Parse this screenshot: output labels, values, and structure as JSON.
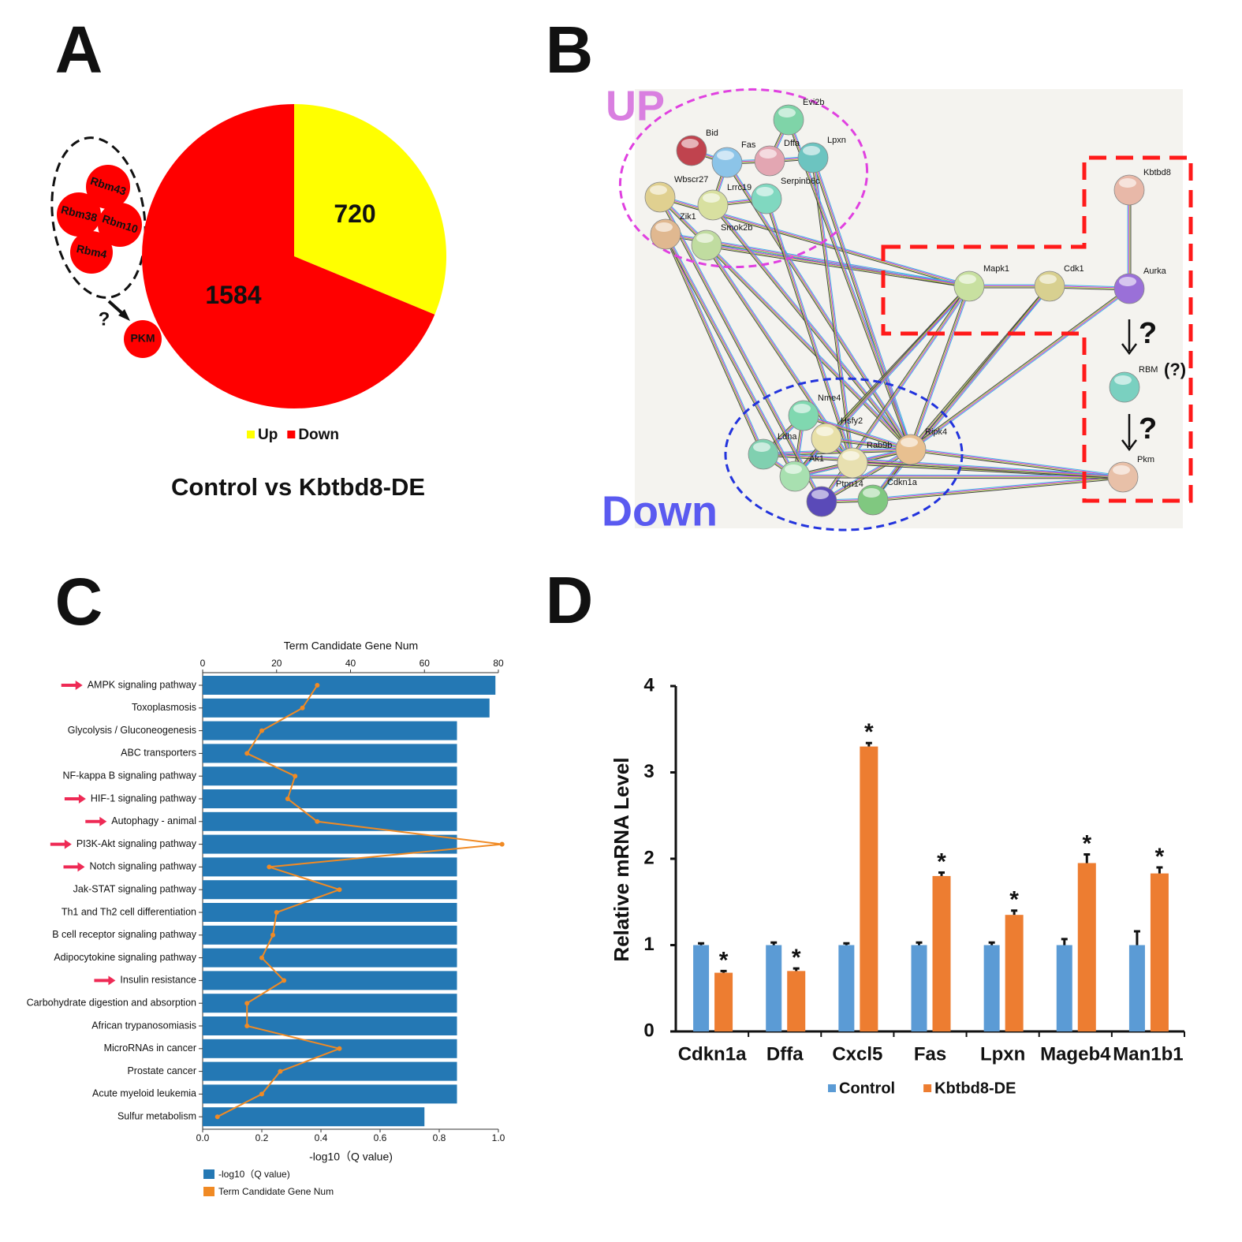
{
  "chart_data": [
    {
      "type": "pie",
      "panel_label": "A",
      "title": "Control vs Kbtbd8-DE",
      "categories": [
        "Up",
        "Down"
      ],
      "values": [
        720,
        1584
      ],
      "colors": [
        "#ffff00",
        "#ff0000"
      ],
      "annotations": [
        "Rbm43",
        "Rbm38",
        "Rbm10",
        "Rbm4",
        "PKM",
        "?"
      ]
    },
    {
      "type": "combo",
      "panel_label": "C",
      "x2label": "Term Candidate Gene Num",
      "xlabel": "-log10（Q value)",
      "categories": [
        "AMPK signaling pathway",
        "Toxoplasmosis",
        "Glycolysis / Gluconeogenesis",
        "ABC transporters",
        "NF-kappa B signaling pathway",
        "HIF-1 signaling pathway",
        "Autophagy - animal",
        "PI3K-Akt signaling pathway",
        "Notch signaling pathway",
        "Jak-STAT signaling pathway",
        "Th1 and Th2 cell differentiation",
        "B cell receptor signaling pathway",
        "Adipocytokine signaling pathway",
        "Insulin resistance",
        "Carbohydrate digestion and absorption",
        "African trypanosomiasis",
        "MicroRNAs in cancer",
        "Prostate cancer",
        "Acute myeloid leukemia",
        "Sulfur metabolism"
      ],
      "series": [
        {
          "name": "-log10（Q value)",
          "color": "#2478b4",
          "values": [
            0.99,
            0.97,
            0.86,
            0.86,
            0.86,
            0.86,
            0.86,
            0.86,
            0.86,
            0.86,
            0.86,
            0.86,
            0.86,
            0.86,
            0.86,
            0.86,
            0.86,
            0.86,
            0.86,
            0.75
          ]
        },
        {
          "name": "Term Candidate Gene Num",
          "color": "#f08a24",
          "axis": "x2",
          "values": [
            31,
            27,
            16,
            12,
            25,
            23,
            31,
            81,
            18,
            37,
            20,
            19,
            16,
            22,
            12,
            12,
            37,
            21,
            16,
            4
          ]
        }
      ],
      "xlim": [
        0,
        1
      ],
      "xticks": [
        {
          "value": 0,
          "label": "0.0"
        },
        {
          "value": 0.2,
          "label": "0.2"
        },
        {
          "value": 0.4,
          "label": "0.4"
        },
        {
          "value": 0.6,
          "label": "0.6"
        },
        {
          "value": 0.8,
          "label": "0.8"
        },
        {
          "value": 1,
          "label": "1.0"
        }
      ],
      "x2lim": [
        0,
        80
      ],
      "x2ticks": [
        0,
        20,
        40,
        60,
        80
      ]
    },
    {
      "type": "bar",
      "panel_label": "D",
      "ylabel": "Relative mRNA  Level",
      "categories": [
        "Cdkn1a",
        "Dffa",
        "Cxcl5",
        "Fas",
        "Lpxn",
        "Mageb4",
        "Man1b1"
      ],
      "series": [
        {
          "name": "Control",
          "color": "#5b9bd5",
          "values": [
            1,
            1,
            1,
            1,
            1,
            1,
            1
          ],
          "errors": [
            0.02,
            0.03,
            0.02,
            0.03,
            0.03,
            0.07,
            0.16
          ]
        },
        {
          "name": "Kbtbd8-DE",
          "color": "#ed7d31",
          "values": [
            0.68,
            0.7,
            3.3,
            1.8,
            1.35,
            1.95,
            1.83
          ],
          "errors": [
            0.02,
            0.03,
            0.04,
            0.04,
            0.05,
            0.1,
            0.07
          ],
          "significance": [
            "*",
            "*",
            "*",
            "*",
            "*",
            "*",
            "*"
          ]
        }
      ],
      "ylim": [
        0,
        4
      ],
      "yticks": [
        0,
        1,
        2,
        3,
        4
      ]
    }
  ],
  "network": {
    "panel_label": "B",
    "group_labels": [
      "UP",
      "Down"
    ],
    "nodes": [
      {
        "label": "Evi2b"
      },
      {
        "label": "Bid"
      },
      {
        "label": "Fas"
      },
      {
        "label": "Dffa"
      },
      {
        "label": "Lpxn"
      },
      {
        "label": "Wbscr27"
      },
      {
        "label": "Lrrc19"
      },
      {
        "label": "Serpinb6c"
      },
      {
        "label": "Zik1"
      },
      {
        "label": "Smok2b"
      },
      {
        "label": "Mapk1"
      },
      {
        "label": "Cdk1"
      },
      {
        "label": "Aurka"
      },
      {
        "label": "Kbtbd8"
      },
      {
        "label": "RBM"
      },
      {
        "label": "Pkm"
      },
      {
        "label": "Nme4"
      },
      {
        "label": "Hsfy2"
      },
      {
        "label": "Ldha"
      },
      {
        "label": "Ripk4"
      },
      {
        "label": "Rab9b"
      },
      {
        "label": "Ak1"
      },
      {
        "label": "Ptpn14"
      },
      {
        "label": "Cdkn1a"
      }
    ],
    "annotations": [
      "?",
      "(?)",
      "?"
    ]
  }
}
